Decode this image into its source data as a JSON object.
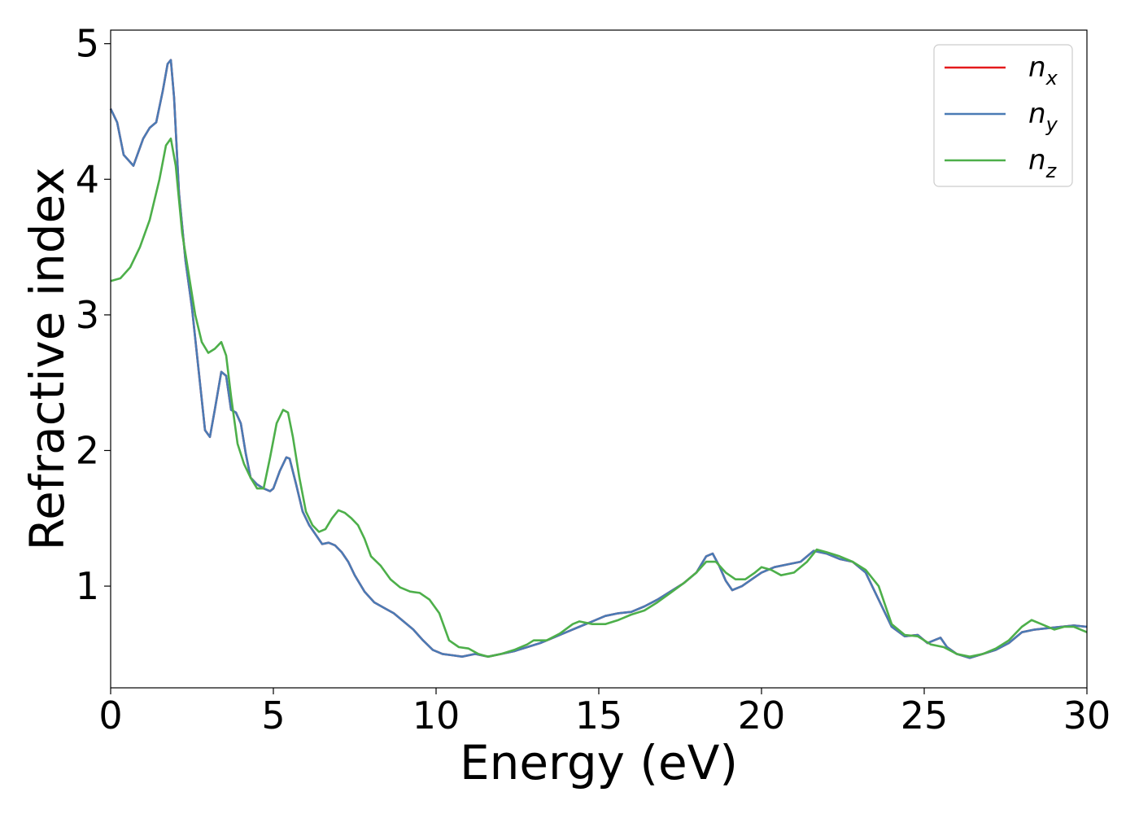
{
  "chart_data": {
    "type": "line",
    "xlabel": "Energy (eV)",
    "ylabel": "Refractive index",
    "xlim": [
      0,
      30
    ],
    "ylim": [
      0.25,
      5.1
    ],
    "xticks": [
      0,
      5,
      10,
      15,
      20,
      25,
      30
    ],
    "xtick_labels": [
      "0",
      "5",
      "10",
      "15",
      "20",
      "25",
      "30"
    ],
    "yticks": [
      1,
      2,
      3,
      4,
      5
    ],
    "ytick_labels": [
      "1",
      "2",
      "3",
      "4",
      "5"
    ],
    "grid": false,
    "legend_position": "top-right",
    "series": [
      {
        "name": "n",
        "subscript": "x",
        "color": "#e41a1c",
        "x": [
          0,
          0.2,
          0.4,
          0.7,
          1.0,
          1.2,
          1.4,
          1.6,
          1.75,
          1.85,
          1.95,
          2.1,
          2.3,
          2.5,
          2.7,
          2.9,
          3.05,
          3.2,
          3.4,
          3.55,
          3.7,
          3.85,
          4.0,
          4.15,
          4.3,
          4.5,
          4.7,
          4.9,
          5.0,
          5.2,
          5.4,
          5.5,
          5.7,
          5.9,
          6.1,
          6.3,
          6.5,
          6.7,
          6.9,
          7.1,
          7.3,
          7.5,
          7.8,
          8.1,
          8.4,
          8.7,
          9.0,
          9.3,
          9.6,
          9.9,
          10.2,
          10.5,
          10.8,
          11.2,
          11.6,
          12.0,
          12.4,
          12.8,
          13.2,
          13.6,
          14.0,
          14.4,
          14.8,
          15.2,
          15.6,
          16.0,
          16.4,
          16.8,
          17.2,
          17.6,
          18.0,
          18.3,
          18.5,
          18.7,
          18.9,
          19.1,
          19.4,
          19.7,
          20.0,
          20.4,
          20.8,
          21.2,
          21.6,
          22.0,
          22.4,
          22.8,
          23.2,
          23.6,
          24.0,
          24.4,
          24.8,
          25.1,
          25.3,
          25.5,
          25.7,
          26.0,
          26.4,
          26.8,
          27.2,
          27.6,
          28.0,
          28.4,
          28.8,
          29.2,
          29.6,
          30.0
        ],
        "y": [
          4.52,
          4.42,
          4.18,
          4.1,
          4.3,
          4.38,
          4.42,
          4.65,
          4.85,
          4.88,
          4.6,
          3.9,
          3.4,
          3.05,
          2.6,
          2.15,
          2.1,
          2.3,
          2.58,
          2.55,
          2.3,
          2.28,
          2.2,
          1.98,
          1.8,
          1.75,
          1.72,
          1.7,
          1.72,
          1.85,
          1.95,
          1.94,
          1.75,
          1.55,
          1.45,
          1.38,
          1.31,
          1.32,
          1.3,
          1.25,
          1.18,
          1.08,
          0.96,
          0.88,
          0.84,
          0.8,
          0.74,
          0.68,
          0.6,
          0.53,
          0.5,
          0.49,
          0.48,
          0.5,
          0.48,
          0.5,
          0.52,
          0.55,
          0.58,
          0.62,
          0.66,
          0.7,
          0.74,
          0.78,
          0.8,
          0.81,
          0.85,
          0.9,
          0.96,
          1.02,
          1.1,
          1.22,
          1.24,
          1.15,
          1.04,
          0.97,
          1.0,
          1.05,
          1.1,
          1.14,
          1.16,
          1.18,
          1.26,
          1.24,
          1.2,
          1.18,
          1.1,
          0.9,
          0.7,
          0.63,
          0.64,
          0.58,
          0.6,
          0.62,
          0.55,
          0.5,
          0.47,
          0.5,
          0.53,
          0.58,
          0.66,
          0.68,
          0.69,
          0.7,
          0.71,
          0.7
        ]
      },
      {
        "name": "n",
        "subscript": "y",
        "color": "#4a7bb5",
        "x": [
          0,
          0.2,
          0.4,
          0.7,
          1.0,
          1.2,
          1.4,
          1.6,
          1.75,
          1.85,
          1.95,
          2.1,
          2.3,
          2.5,
          2.7,
          2.9,
          3.05,
          3.2,
          3.4,
          3.55,
          3.7,
          3.85,
          4.0,
          4.15,
          4.3,
          4.5,
          4.7,
          4.9,
          5.0,
          5.2,
          5.4,
          5.5,
          5.7,
          5.9,
          6.1,
          6.3,
          6.5,
          6.7,
          6.9,
          7.1,
          7.3,
          7.5,
          7.8,
          8.1,
          8.4,
          8.7,
          9.0,
          9.3,
          9.6,
          9.9,
          10.2,
          10.5,
          10.8,
          11.2,
          11.6,
          12.0,
          12.4,
          12.8,
          13.2,
          13.6,
          14.0,
          14.4,
          14.8,
          15.2,
          15.6,
          16.0,
          16.4,
          16.8,
          17.2,
          17.6,
          18.0,
          18.3,
          18.5,
          18.7,
          18.9,
          19.1,
          19.4,
          19.7,
          20.0,
          20.4,
          20.8,
          21.2,
          21.6,
          22.0,
          22.4,
          22.8,
          23.2,
          23.6,
          24.0,
          24.4,
          24.8,
          25.1,
          25.3,
          25.5,
          25.7,
          26.0,
          26.4,
          26.8,
          27.2,
          27.6,
          28.0,
          28.4,
          28.8,
          29.2,
          29.6,
          30.0
        ],
        "y": [
          4.52,
          4.42,
          4.18,
          4.1,
          4.3,
          4.38,
          4.42,
          4.65,
          4.85,
          4.88,
          4.6,
          3.9,
          3.4,
          3.05,
          2.6,
          2.15,
          2.1,
          2.3,
          2.58,
          2.55,
          2.3,
          2.28,
          2.2,
          1.98,
          1.8,
          1.75,
          1.72,
          1.7,
          1.72,
          1.85,
          1.95,
          1.94,
          1.75,
          1.55,
          1.45,
          1.38,
          1.31,
          1.32,
          1.3,
          1.25,
          1.18,
          1.08,
          0.96,
          0.88,
          0.84,
          0.8,
          0.74,
          0.68,
          0.6,
          0.53,
          0.5,
          0.49,
          0.48,
          0.5,
          0.48,
          0.5,
          0.52,
          0.55,
          0.58,
          0.62,
          0.66,
          0.7,
          0.74,
          0.78,
          0.8,
          0.81,
          0.85,
          0.9,
          0.96,
          1.02,
          1.1,
          1.22,
          1.24,
          1.15,
          1.04,
          0.97,
          1.0,
          1.05,
          1.1,
          1.14,
          1.16,
          1.18,
          1.26,
          1.24,
          1.2,
          1.18,
          1.1,
          0.9,
          0.7,
          0.63,
          0.64,
          0.58,
          0.6,
          0.62,
          0.55,
          0.5,
          0.47,
          0.5,
          0.53,
          0.58,
          0.66,
          0.68,
          0.69,
          0.7,
          0.71,
          0.7
        ]
      },
      {
        "name": "n",
        "subscript": "z",
        "color": "#4daf4a",
        "x": [
          0,
          0.3,
          0.6,
          0.9,
          1.2,
          1.5,
          1.7,
          1.85,
          2.0,
          2.2,
          2.4,
          2.6,
          2.8,
          3.0,
          3.2,
          3.4,
          3.55,
          3.7,
          3.9,
          4.1,
          4.3,
          4.5,
          4.7,
          4.9,
          5.1,
          5.3,
          5.45,
          5.6,
          5.8,
          6.0,
          6.2,
          6.4,
          6.6,
          6.8,
          7.0,
          7.2,
          7.4,
          7.6,
          7.8,
          8.0,
          8.3,
          8.6,
          8.9,
          9.2,
          9.5,
          9.8,
          10.1,
          10.4,
          10.7,
          11.0,
          11.3,
          11.6,
          12.0,
          12.4,
          12.8,
          13.0,
          13.4,
          13.8,
          14.2,
          14.4,
          14.8,
          15.2,
          15.6,
          16.0,
          16.4,
          16.8,
          17.2,
          17.6,
          18.0,
          18.3,
          18.6,
          18.9,
          19.2,
          19.5,
          19.8,
          20.0,
          20.3,
          20.6,
          21.0,
          21.4,
          21.7,
          22.0,
          22.4,
          22.8,
          23.2,
          23.6,
          24.0,
          24.4,
          24.8,
          25.2,
          25.6,
          26.0,
          26.4,
          26.8,
          27.2,
          27.6,
          28.0,
          28.3,
          28.6,
          29.0,
          29.3,
          29.6,
          30.0
        ],
        "y": [
          3.25,
          3.27,
          3.35,
          3.5,
          3.7,
          4.0,
          4.25,
          4.3,
          4.1,
          3.6,
          3.3,
          3.0,
          2.8,
          2.72,
          2.75,
          2.8,
          2.7,
          2.4,
          2.05,
          1.9,
          1.8,
          1.72,
          1.72,
          1.95,
          2.2,
          2.3,
          2.28,
          2.1,
          1.8,
          1.55,
          1.45,
          1.4,
          1.42,
          1.5,
          1.56,
          1.54,
          1.5,
          1.45,
          1.35,
          1.22,
          1.15,
          1.05,
          0.99,
          0.96,
          0.95,
          0.9,
          0.8,
          0.6,
          0.55,
          0.54,
          0.5,
          0.48,
          0.5,
          0.53,
          0.57,
          0.6,
          0.6,
          0.65,
          0.72,
          0.74,
          0.72,
          0.72,
          0.75,
          0.79,
          0.82,
          0.88,
          0.95,
          1.02,
          1.1,
          1.18,
          1.18,
          1.1,
          1.05,
          1.05,
          1.1,
          1.14,
          1.12,
          1.08,
          1.1,
          1.18,
          1.27,
          1.25,
          1.22,
          1.18,
          1.12,
          1.0,
          0.72,
          0.64,
          0.63,
          0.57,
          0.55,
          0.5,
          0.48,
          0.5,
          0.54,
          0.6,
          0.7,
          0.75,
          0.72,
          0.68,
          0.7,
          0.7,
          0.66
        ]
      }
    ]
  }
}
